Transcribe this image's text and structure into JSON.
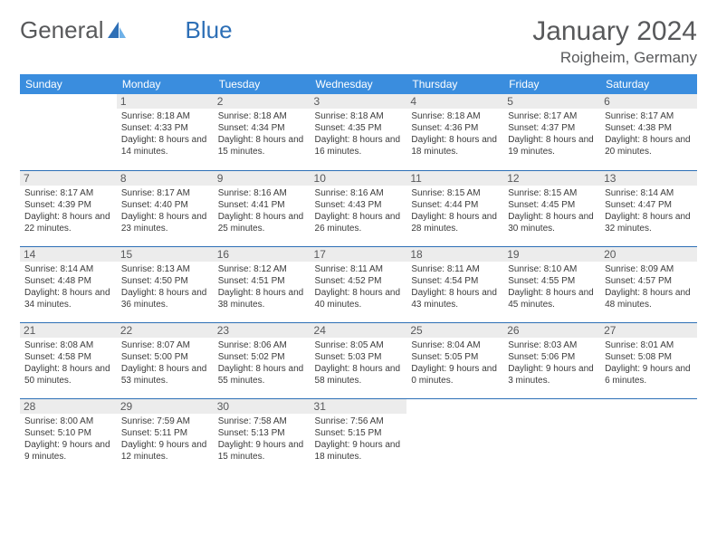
{
  "brand": {
    "part1": "General",
    "part2": "Blue"
  },
  "page_title": "January 2024",
  "location": "Roigheim, Germany",
  "colors": {
    "header_bg": "#3a8dde",
    "header_text": "#ffffff",
    "row_border": "#2d6fb6",
    "daynum_bg": "#ececec",
    "text_gray": "#58595b",
    "logo_blue": "#2d6fb6"
  },
  "typography": {
    "month_title_pt": 30,
    "location_pt": 17,
    "header_pt": 12,
    "daynum_pt": 12,
    "daytext_pt": 10
  },
  "weekdays": [
    "Sunday",
    "Monday",
    "Tuesday",
    "Wednesday",
    "Thursday",
    "Friday",
    "Saturday"
  ],
  "weeks": [
    [
      null,
      {
        "n": "1",
        "sr": "8:18 AM",
        "ss": "4:33 PM",
        "dl": "8 hours and 14 minutes."
      },
      {
        "n": "2",
        "sr": "8:18 AM",
        "ss": "4:34 PM",
        "dl": "8 hours and 15 minutes."
      },
      {
        "n": "3",
        "sr": "8:18 AM",
        "ss": "4:35 PM",
        "dl": "8 hours and 16 minutes."
      },
      {
        "n": "4",
        "sr": "8:18 AM",
        "ss": "4:36 PM",
        "dl": "8 hours and 18 minutes."
      },
      {
        "n": "5",
        "sr": "8:17 AM",
        "ss": "4:37 PM",
        "dl": "8 hours and 19 minutes."
      },
      {
        "n": "6",
        "sr": "8:17 AM",
        "ss": "4:38 PM",
        "dl": "8 hours and 20 minutes."
      }
    ],
    [
      {
        "n": "7",
        "sr": "8:17 AM",
        "ss": "4:39 PM",
        "dl": "8 hours and 22 minutes."
      },
      {
        "n": "8",
        "sr": "8:17 AM",
        "ss": "4:40 PM",
        "dl": "8 hours and 23 minutes."
      },
      {
        "n": "9",
        "sr": "8:16 AM",
        "ss": "4:41 PM",
        "dl": "8 hours and 25 minutes."
      },
      {
        "n": "10",
        "sr": "8:16 AM",
        "ss": "4:43 PM",
        "dl": "8 hours and 26 minutes."
      },
      {
        "n": "11",
        "sr": "8:15 AM",
        "ss": "4:44 PM",
        "dl": "8 hours and 28 minutes."
      },
      {
        "n": "12",
        "sr": "8:15 AM",
        "ss": "4:45 PM",
        "dl": "8 hours and 30 minutes."
      },
      {
        "n": "13",
        "sr": "8:14 AM",
        "ss": "4:47 PM",
        "dl": "8 hours and 32 minutes."
      }
    ],
    [
      {
        "n": "14",
        "sr": "8:14 AM",
        "ss": "4:48 PM",
        "dl": "8 hours and 34 minutes."
      },
      {
        "n": "15",
        "sr": "8:13 AM",
        "ss": "4:50 PM",
        "dl": "8 hours and 36 minutes."
      },
      {
        "n": "16",
        "sr": "8:12 AM",
        "ss": "4:51 PM",
        "dl": "8 hours and 38 minutes."
      },
      {
        "n": "17",
        "sr": "8:11 AM",
        "ss": "4:52 PM",
        "dl": "8 hours and 40 minutes."
      },
      {
        "n": "18",
        "sr": "8:11 AM",
        "ss": "4:54 PM",
        "dl": "8 hours and 43 minutes."
      },
      {
        "n": "19",
        "sr": "8:10 AM",
        "ss": "4:55 PM",
        "dl": "8 hours and 45 minutes."
      },
      {
        "n": "20",
        "sr": "8:09 AM",
        "ss": "4:57 PM",
        "dl": "8 hours and 48 minutes."
      }
    ],
    [
      {
        "n": "21",
        "sr": "8:08 AM",
        "ss": "4:58 PM",
        "dl": "8 hours and 50 minutes."
      },
      {
        "n": "22",
        "sr": "8:07 AM",
        "ss": "5:00 PM",
        "dl": "8 hours and 53 minutes."
      },
      {
        "n": "23",
        "sr": "8:06 AM",
        "ss": "5:02 PM",
        "dl": "8 hours and 55 minutes."
      },
      {
        "n": "24",
        "sr": "8:05 AM",
        "ss": "5:03 PM",
        "dl": "8 hours and 58 minutes."
      },
      {
        "n": "25",
        "sr": "8:04 AM",
        "ss": "5:05 PM",
        "dl": "9 hours and 0 minutes."
      },
      {
        "n": "26",
        "sr": "8:03 AM",
        "ss": "5:06 PM",
        "dl": "9 hours and 3 minutes."
      },
      {
        "n": "27",
        "sr": "8:01 AM",
        "ss": "5:08 PM",
        "dl": "9 hours and 6 minutes."
      }
    ],
    [
      {
        "n": "28",
        "sr": "8:00 AM",
        "ss": "5:10 PM",
        "dl": "9 hours and 9 minutes."
      },
      {
        "n": "29",
        "sr": "7:59 AM",
        "ss": "5:11 PM",
        "dl": "9 hours and 12 minutes."
      },
      {
        "n": "30",
        "sr": "7:58 AM",
        "ss": "5:13 PM",
        "dl": "9 hours and 15 minutes."
      },
      {
        "n": "31",
        "sr": "7:56 AM",
        "ss": "5:15 PM",
        "dl": "9 hours and 18 minutes."
      },
      null,
      null,
      null
    ]
  ],
  "labels": {
    "sunrise": "Sunrise:",
    "sunset": "Sunset:",
    "daylight": "Daylight:"
  }
}
